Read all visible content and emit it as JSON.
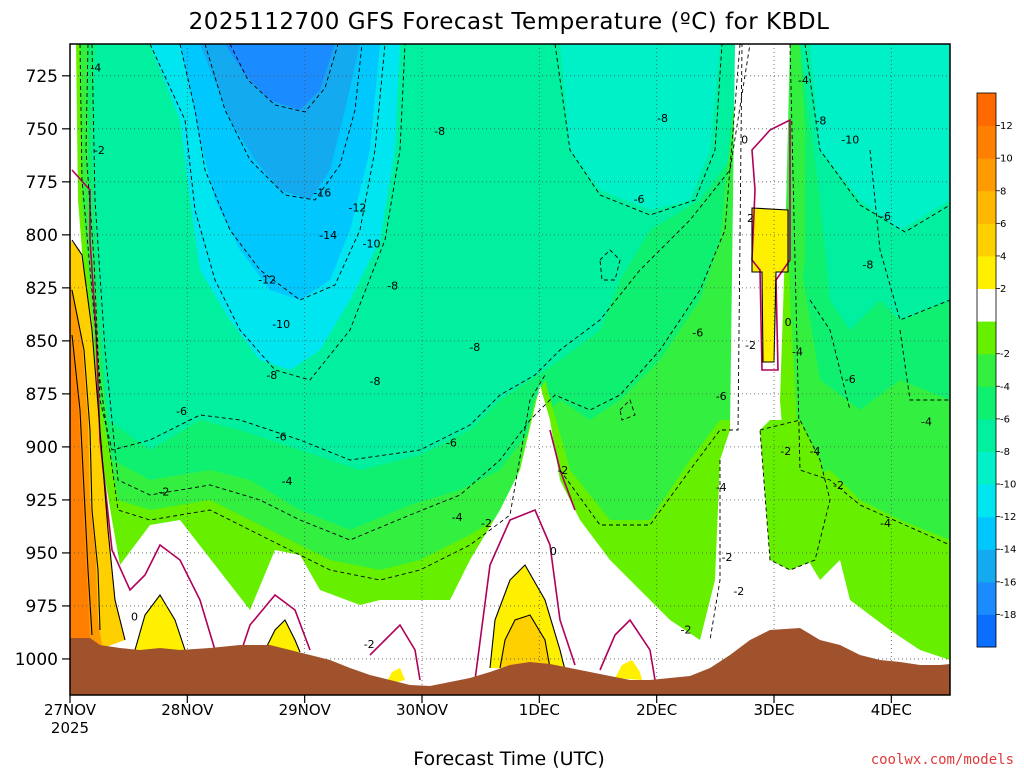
{
  "chart_data": {
    "type": "heatmap",
    "title": "2025112700 GFS Forecast Temperature (ºC) for KBDL",
    "xlabel": "Forecast Time (UTC)",
    "ylabel": "",
    "credit": "coolwx.com/models",
    "x_ticks": [
      "27NOV\n2025",
      "28NOV",
      "29NOV",
      "30NOV",
      "1DEC",
      "2DEC",
      "3DEC",
      "4DEC"
    ],
    "x_range_days": [
      0,
      7.5
    ],
    "y_ticks": [
      725,
      750,
      775,
      800,
      825,
      850,
      875,
      900,
      925,
      950,
      975,
      1000
    ],
    "y_range_hpa": [
      710,
      1017
    ],
    "grid": true,
    "colorbar": {
      "levels": [
        -20,
        -18,
        -16,
        -14,
        -12,
        -10,
        -8,
        -6,
        -4,
        -2,
        0,
        2,
        4,
        6,
        8,
        10,
        12,
        14
      ],
      "labels": [
        "-18",
        "-16",
        "-14",
        "-12",
        "-10",
        "-8",
        "-6",
        "-4",
        "-2",
        "2",
        "4",
        "6",
        "8",
        "10",
        "12"
      ],
      "colors": [
        "#0a6eff",
        "#1a8cff",
        "#14aaf0",
        "#00c8ff",
        "#00e6f0",
        "#00f0c8",
        "#00f0a0",
        "#10f070",
        "#33f040",
        "#66f000",
        "#ffffff",
        "#fff000",
        "#ffd000",
        "#ffb800",
        "#ff9a00",
        "#ff8000",
        "#ff6a00"
      ]
    },
    "contour_labels": [
      {
        "t": "-4",
        "d": 0.22,
        "p": 721
      },
      {
        "t": "-2",
        "d": 0.25,
        "p": 760
      },
      {
        "t": "-16",
        "d": 2.15,
        "p": 780
      },
      {
        "t": "-12",
        "d": 2.45,
        "p": 787
      },
      {
        "t": "-14",
        "d": 2.2,
        "p": 800
      },
      {
        "t": "-10",
        "d": 2.57,
        "p": 804
      },
      {
        "t": "-12",
        "d": 1.68,
        "p": 821
      },
      {
        "t": "-8",
        "d": 2.75,
        "p": 824
      },
      {
        "t": "-10",
        "d": 1.8,
        "p": 842
      },
      {
        "t": "-8",
        "d": 3.45,
        "p": 853
      },
      {
        "t": "-8",
        "d": 1.72,
        "p": 866
      },
      {
        "t": "-8",
        "d": 2.6,
        "p": 869
      },
      {
        "t": "-6",
        "d": 0.95,
        "p": 883
      },
      {
        "t": "-6",
        "d": 1.8,
        "p": 895
      },
      {
        "t": "-6",
        "d": 3.25,
        "p": 898
      },
      {
        "t": "-4",
        "d": 1.85,
        "p": 916
      },
      {
        "t": "-2",
        "d": 0.8,
        "p": 921
      },
      {
        "t": "-4",
        "d": 3.3,
        "p": 933
      },
      {
        "t": "-2",
        "d": 3.55,
        "p": 936
      },
      {
        "t": "-2",
        "d": 4.2,
        "p": 911
      },
      {
        "t": "0",
        "d": 4.12,
        "p": 949
      },
      {
        "t": "0",
        "d": 0.55,
        "p": 980
      },
      {
        "t": "-2",
        "d": 2.55,
        "p": 993
      },
      {
        "t": "-2",
        "d": 5.25,
        "p": 986
      },
      {
        "t": "-8",
        "d": 3.15,
        "p": 751
      },
      {
        "t": "-8",
        "d": 5.05,
        "p": 745
      },
      {
        "t": "-6",
        "d": 4.85,
        "p": 783
      },
      {
        "t": "-6",
        "d": 5.35,
        "p": 846
      },
      {
        "t": "-6",
        "d": 5.55,
        "p": 876
      },
      {
        "t": "-4",
        "d": 5.55,
        "p": 919
      },
      {
        "t": "-2",
        "d": 5.6,
        "p": 952
      },
      {
        "t": "-2",
        "d": 5.7,
        "p": 968
      },
      {
        "t": "-2",
        "d": 5.8,
        "p": 852
      },
      {
        "t": "0",
        "d": 5.75,
        "p": 755
      },
      {
        "t": "2",
        "d": 5.8,
        "p": 792
      },
      {
        "t": "0",
        "d": 6.12,
        "p": 841
      },
      {
        "t": "-4",
        "d": 6.2,
        "p": 855
      },
      {
        "t": "-4",
        "d": 6.25,
        "p": 727
      },
      {
        "t": "-8",
        "d": 6.4,
        "p": 746
      },
      {
        "t": "-10",
        "d": 6.65,
        "p": 755
      },
      {
        "t": "-6",
        "d": 6.95,
        "p": 791
      },
      {
        "t": "-8",
        "d": 6.8,
        "p": 814
      },
      {
        "t": "-6",
        "d": 6.65,
        "p": 868
      },
      {
        "t": "-2",
        "d": 6.1,
        "p": 902
      },
      {
        "t": "-4",
        "d": 6.35,
        "p": 902
      },
      {
        "t": "-2",
        "d": 6.55,
        "p": 918
      },
      {
        "t": "-4",
        "d": 6.95,
        "p": 936
      },
      {
        "t": "-4",
        "d": 7.3,
        "p": 888
      }
    ]
  }
}
